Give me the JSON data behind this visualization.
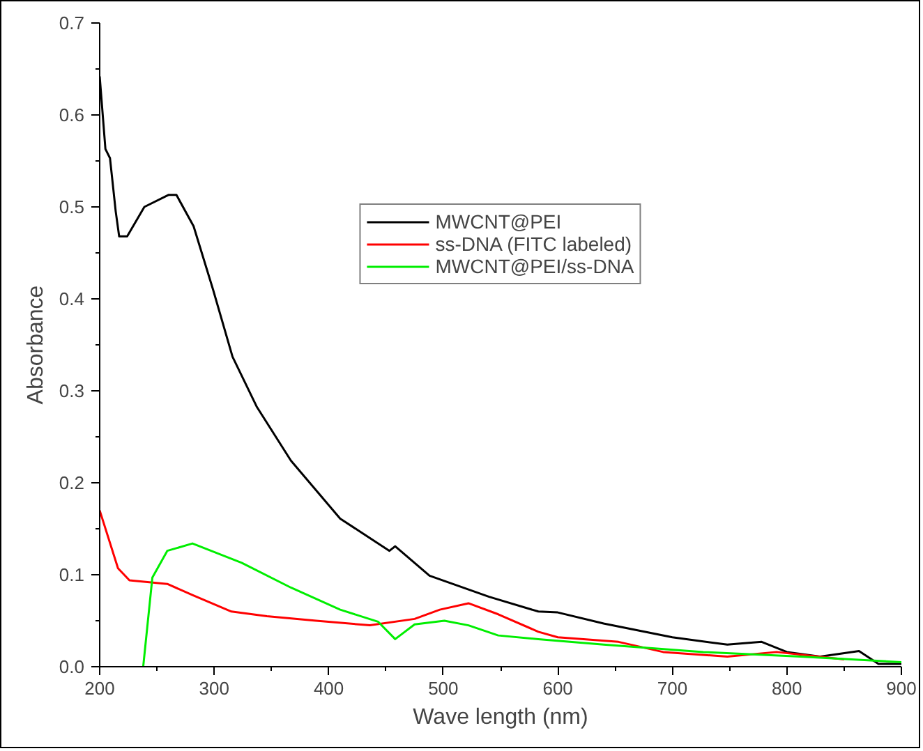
{
  "chart_data": {
    "type": "line",
    "xlabel": "Wave length (nm)",
    "ylabel": "Absorbance",
    "xlim": [
      200,
      900
    ],
    "ylim": [
      0,
      0.7
    ],
    "xticks": [
      200,
      300,
      400,
      500,
      600,
      700,
      800,
      900
    ],
    "yticks": [
      {
        "value": 0,
        "label": "0.0"
      },
      {
        "value": 0.1,
        "label": "0.1"
      },
      {
        "value": 0.2,
        "label": "0.2"
      },
      {
        "value": 0.3,
        "label": "0.3"
      },
      {
        "value": 0.4,
        "label": "0.4"
      },
      {
        "value": 0.5,
        "label": "0.5"
      },
      {
        "value": 0.6,
        "label": "0.6"
      },
      {
        "value": 0.7,
        "label": "0.7"
      }
    ],
    "grid": false,
    "legend": "top",
    "line_style": "solid",
    "marker": "none",
    "series": [
      {
        "name": "MWCNT@PEI",
        "color": "#000000",
        "x": [
          200,
          205,
          209,
          214,
          217,
          224,
          239,
          260,
          267,
          282,
          299,
          316,
          337,
          367,
          410,
          453,
          458,
          488,
          540,
          583,
          600,
          640,
          700,
          748,
          778,
          800,
          829,
          863,
          880,
          900
        ],
        "values": [
          0.642,
          0.563,
          0.553,
          0.495,
          0.468,
          0.468,
          0.5,
          0.513,
          0.513,
          0.479,
          0.41,
          0.337,
          0.283,
          0.224,
          0.161,
          0.126,
          0.131,
          0.099,
          0.076,
          0.06,
          0.059,
          0.047,
          0.032,
          0.024,
          0.027,
          0.016,
          0.011,
          0.017,
          0.003,
          0.003
        ]
      },
      {
        "name": "ss-DNA (FITC labeled)",
        "color": "#ff0000",
        "x": [
          200,
          216,
          226,
          259,
          281,
          315,
          346,
          389,
          436,
          475,
          497,
          522,
          548,
          583,
          600,
          653,
          692,
          748,
          791,
          850
        ],
        "values": [
          0.17,
          0.107,
          0.094,
          0.09,
          0.078,
          0.06,
          0.055,
          0.05,
          0.045,
          0.052,
          0.062,
          0.069,
          0.057,
          0.038,
          0.032,
          0.027,
          0.016,
          0.011,
          0.016,
          0.008
        ]
      },
      {
        "name": "MWCNT@PEI/ss-DNA",
        "color": "#00ee00",
        "x": [
          238,
          246,
          259,
          281,
          324,
          367,
          410,
          443,
          458,
          475,
          501,
          522,
          548,
          583,
          640,
          727,
          812,
          900
        ],
        "values": [
          0,
          0.097,
          0.126,
          0.134,
          0.113,
          0.086,
          0.062,
          0.049,
          0.03,
          0.046,
          0.05,
          0.045,
          0.034,
          0.03,
          0.024,
          0.016,
          0.011,
          0.005
        ]
      }
    ]
  }
}
